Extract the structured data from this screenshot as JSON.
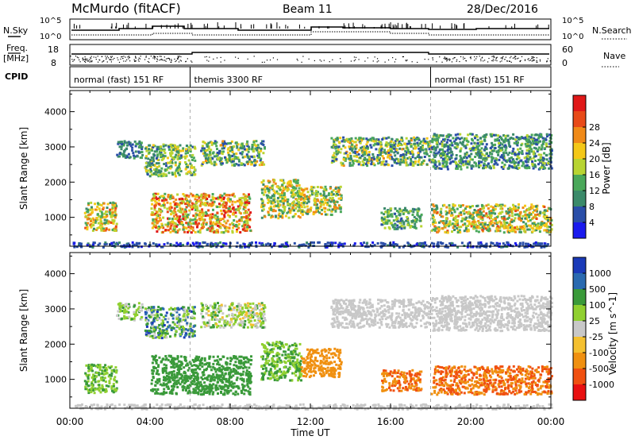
{
  "header": {
    "radar": "McMurdo (fitACF)",
    "beam": "Beam 11",
    "date": "28/Dec/2016"
  },
  "summary_panels": {
    "nsky_label": "N.Sky",
    "nsearch_label": "N.Search",
    "noise_ticks": [
      "10^5",
      "10^0"
    ],
    "freq_label_1": "Freq.",
    "freq_label_2": "[MHz]",
    "freq_ticks": [
      "18",
      "8"
    ],
    "nave_label": "Nave",
    "nave_ticks": [
      "60",
      "0"
    ],
    "cpid_label": "CPID",
    "cpid_segments": [
      {
        "name": "normal (fast) 151 RF",
        "start_h": 0,
        "end_h": 6
      },
      {
        "name": "themis 3300 RF",
        "start_h": 6,
        "end_h": 18
      },
      {
        "name": "normal (fast) 151 RF",
        "start_h": 18,
        "end_h": 24
      }
    ]
  },
  "colors": {
    "power": [
      "#1a1aee",
      "#2a4ea8",
      "#3b8a6a",
      "#4aa85a",
      "#b8d432",
      "#f4c818",
      "#f08a18",
      "#e84a18",
      "#e01818"
    ],
    "velocity": [
      "#e81010",
      "#f05010",
      "#f09010",
      "#f4c030",
      "#c8c8c8",
      "#90d030",
      "#3a9a3a",
      "#2a6ab0",
      "#1a3ab8"
    ]
  },
  "chart_data": [
    {
      "type": "heatmap",
      "title": "Power",
      "xlabel": "Time UT",
      "ylabel": "Slant Range [km]",
      "xlim_hours": [
        0,
        24
      ],
      "xticks": [
        "00:00",
        "04:00",
        "08:00",
        "12:00",
        "16:00",
        "20:00",
        "00:00"
      ],
      "ylim": [
        180,
        4600
      ],
      "yticks": [
        1000,
        2000,
        3000,
        4000
      ],
      "colorbar_label": "Power [dB]",
      "colorbar_range": [
        0,
        32
      ],
      "colorbar_ticks": [
        "4",
        "8",
        "12",
        "16",
        "20",
        "24",
        "28"
      ],
      "regions": [
        {
          "t0": 0.1,
          "t1": 24,
          "r0": 180,
          "r1": 320,
          "min": 2,
          "max": 8
        },
        {
          "t0": 0.7,
          "t1": 2.3,
          "r0": 650,
          "r1": 1450,
          "min": 8,
          "max": 26
        },
        {
          "t0": 2.3,
          "t1": 3.6,
          "r0": 2700,
          "r1": 3200,
          "min": 4,
          "max": 14
        },
        {
          "t0": 3.7,
          "t1": 6.2,
          "r0": 2200,
          "r1": 3100,
          "min": 6,
          "max": 20
        },
        {
          "t0": 4.0,
          "t1": 9.0,
          "r0": 600,
          "r1": 1700,
          "min": 12,
          "max": 30
        },
        {
          "t0": 6.5,
          "t1": 9.7,
          "r0": 2500,
          "r1": 3200,
          "min": 4,
          "max": 22
        },
        {
          "t0": 9.5,
          "t1": 11.5,
          "r0": 1000,
          "r1": 2100,
          "min": 8,
          "max": 24
        },
        {
          "t0": 11.5,
          "t1": 13.5,
          "r0": 1100,
          "r1": 1900,
          "min": 8,
          "max": 24
        },
        {
          "t0": 13.0,
          "t1": 18.0,
          "r0": 2500,
          "r1": 3300,
          "min": 4,
          "max": 22
        },
        {
          "t0": 15.5,
          "t1": 17.5,
          "r0": 700,
          "r1": 1300,
          "min": 6,
          "max": 18
        },
        {
          "t0": 18.0,
          "t1": 24,
          "r0": 600,
          "r1": 1400,
          "min": 8,
          "max": 26
        },
        {
          "t0": 18.0,
          "t1": 24,
          "r0": 2400,
          "r1": 3400,
          "min": 4,
          "max": 16
        }
      ]
    },
    {
      "type": "heatmap",
      "title": "Velocity",
      "xlabel": "Time UT",
      "ylabel": "Slant Range [km]",
      "xlim_hours": [
        0,
        24
      ],
      "xticks": [
        "00:00",
        "04:00",
        "08:00",
        "12:00",
        "16:00",
        "20:00",
        "00:00"
      ],
      "ylim": [
        180,
        4600
      ],
      "yticks": [
        1000,
        2000,
        3000,
        4000
      ],
      "colorbar_label": "Velocity [m s^-1]",
      "colorbar_ticks": [
        "1000",
        "500",
        "100",
        "25",
        "-25",
        "-100",
        "-500",
        "-1000"
      ],
      "regions": [
        {
          "t0": 0.1,
          "t1": 24,
          "r0": 180,
          "r1": 320,
          "min": 4,
          "max": 4
        },
        {
          "t0": 0.7,
          "t1": 2.3,
          "r0": 650,
          "r1": 1450,
          "min": 5,
          "max": 6
        },
        {
          "t0": 2.3,
          "t1": 3.6,
          "r0": 2700,
          "r1": 3200,
          "min": 4,
          "max": 6
        },
        {
          "t0": 3.7,
          "t1": 6.2,
          "r0": 2200,
          "r1": 3100,
          "min": 4,
          "max": 8
        },
        {
          "t0": 4.0,
          "t1": 9.0,
          "r0": 600,
          "r1": 1700,
          "min": 6,
          "max": 6
        },
        {
          "t0": 6.5,
          "t1": 9.7,
          "r0": 2500,
          "r1": 3200,
          "min": 3,
          "max": 6
        },
        {
          "t0": 9.5,
          "t1": 11.5,
          "r0": 1000,
          "r1": 2100,
          "min": 5,
          "max": 6
        },
        {
          "t0": 11.5,
          "t1": 13.5,
          "r0": 1100,
          "r1": 1900,
          "min": 2,
          "max": 2
        },
        {
          "t0": 13.0,
          "t1": 18.0,
          "r0": 2500,
          "r1": 3300,
          "min": 4,
          "max": 4
        },
        {
          "t0": 15.5,
          "t1": 17.5,
          "r0": 700,
          "r1": 1300,
          "min": 1,
          "max": 2
        },
        {
          "t0": 18.0,
          "t1": 24,
          "r0": 600,
          "r1": 1400,
          "min": 1,
          "max": 2
        },
        {
          "t0": 18.0,
          "t1": 24,
          "r0": 2400,
          "r1": 3400,
          "min": 4,
          "max": 4
        }
      ]
    }
  ]
}
